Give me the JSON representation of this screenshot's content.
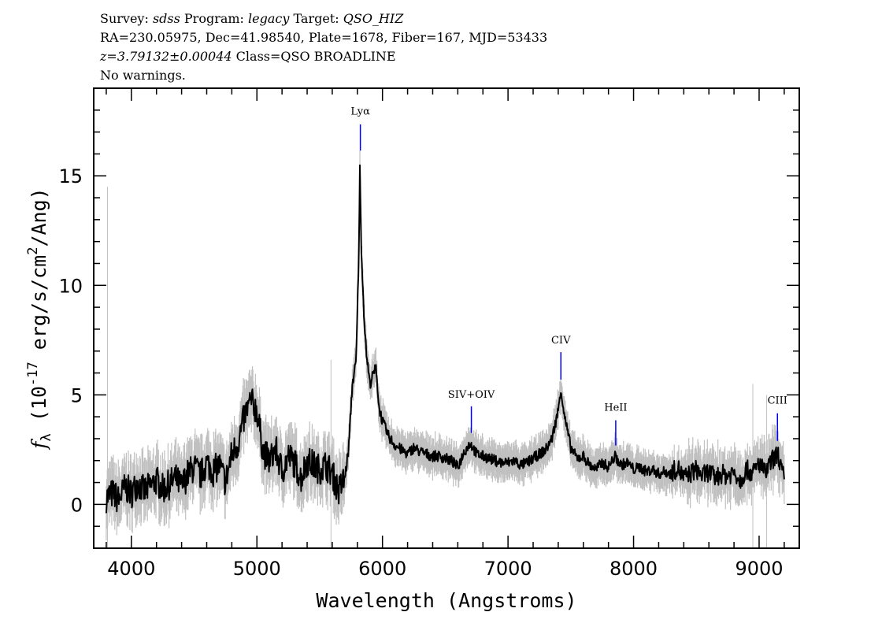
{
  "header": {
    "line1": {
      "survey_label": "Survey: ",
      "survey": "sdss",
      "program_label": " Program: ",
      "program": "legacy",
      "target_label": " Target: ",
      "target": "QSO_HIZ"
    },
    "line2": "RA=230.05975, Dec=41.98540, Plate=1678, Fiber=167, MJD=53433",
    "line3": {
      "redshift": "z=3.79132±0.00044",
      "class": " Class=QSO BROADLINE"
    },
    "line4": "No warnings."
  },
  "chart_data": {
    "type": "line",
    "xlabel": "Wavelength (Angstroms)",
    "ylabel": "f_λ (10^-17 erg/s/cm^2/Ang)",
    "xlim": [
      3700,
      9320
    ],
    "ylim": [
      -2,
      19
    ],
    "xticks": [
      4000,
      5000,
      6000,
      7000,
      8000,
      9000
    ],
    "yticks": [
      0,
      5,
      10,
      15
    ],
    "x_minor_step": 200,
    "y_minor_step": 1,
    "grid": false,
    "colors": {
      "flux": "#000000",
      "error_band": "#c0c0c0",
      "line_marker": "#0000ff"
    },
    "series": [
      {
        "x": [
          3800,
          3850,
          3900,
          3950,
          4000,
          4050,
          4100,
          4150,
          4200,
          4250,
          4300,
          4350,
          4400,
          4450,
          4500,
          4550,
          4600,
          4650,
          4700,
          4750,
          4800,
          4850,
          4900,
          4950,
          5000,
          5050,
          5100,
          5150,
          5200,
          5250,
          5300,
          5350,
          5400,
          5450,
          5500,
          5550,
          5600,
          5650,
          5700,
          5730,
          5760,
          5790,
          5810,
          5820,
          5830,
          5850,
          5870,
          5900,
          5950,
          5970,
          6000,
          6050,
          6100,
          6150,
          6200,
          6250,
          6300,
          6350,
          6400,
          6450,
          6500,
          6550,
          6600,
          6650,
          6700,
          6750,
          6800,
          6850,
          6900,
          6950,
          7000,
          7050,
          7100,
          7150,
          7200,
          7250,
          7300,
          7350,
          7400,
          7420,
          7450,
          7500,
          7550,
          7600,
          7650,
          7700,
          7750,
          7800,
          7850,
          7900,
          7950,
          8000,
          8050,
          8100,
          8150,
          8200,
          8250,
          8300,
          8350,
          8400,
          8450,
          8500,
          8550,
          8600,
          8650,
          8700,
          8750,
          8800,
          8850,
          8900,
          8950,
          9000,
          9050,
          9100,
          9150,
          9200
        ],
        "y": [
          0.3,
          0.5,
          0.2,
          0.8,
          0.5,
          1.0,
          0.6,
          0.8,
          1.1,
          0.7,
          0.9,
          1.2,
          0.8,
          1.4,
          1.7,
          1.3,
          1.9,
          1.5,
          1.8,
          1.0,
          2.3,
          2.8,
          4.0,
          4.7,
          4.3,
          2.4,
          2.0,
          2.5,
          1.5,
          2.2,
          1.9,
          1.2,
          2.0,
          1.8,
          1.6,
          1.8,
          1.4,
          0.6,
          1.2,
          2.5,
          5.5,
          6.5,
          11.0,
          15.3,
          12.0,
          9.0,
          7.0,
          5.5,
          6.3,
          4.5,
          3.8,
          3.1,
          2.7,
          2.5,
          2.3,
          2.6,
          2.4,
          2.3,
          2.2,
          2.2,
          2.1,
          2.0,
          1.7,
          2.4,
          2.8,
          2.3,
          2.2,
          2.1,
          2.0,
          1.9,
          1.9,
          2.0,
          1.8,
          1.9,
          2.1,
          2.3,
          2.5,
          3.0,
          4.3,
          5.3,
          4.0,
          2.6,
          2.1,
          2.2,
          1.8,
          1.6,
          1.9,
          1.7,
          2.2,
          1.8,
          1.9,
          1.6,
          1.7,
          1.5,
          1.6,
          1.4,
          1.5,
          1.4,
          1.7,
          1.2,
          1.4,
          1.6,
          1.3,
          1.5,
          1.2,
          1.4,
          1.3,
          1.5,
          1.1,
          1.6,
          1.4,
          1.9,
          1.4,
          2.0,
          2.3,
          1.1
        ]
      }
    ],
    "annotations": [
      {
        "label": "Lyα",
        "x": 5824,
        "label_y": 17.8,
        "marker_top": 17.35,
        "marker_bottom": 16.15
      },
      {
        "label": "SIV+OIV",
        "x": 6708,
        "label_y": 4.87,
        "marker_top": 4.48,
        "marker_bottom": 3.26
      },
      {
        "label": "CIV",
        "x": 7421,
        "label_y": 7.35,
        "marker_top": 6.95,
        "marker_bottom": 5.7
      },
      {
        "label": "HeII",
        "x": 7858,
        "label_y": 4.27,
        "marker_top": 3.84,
        "marker_bottom": 2.69
      },
      {
        "label": "CIII",
        "x": 9146,
        "label_y": 4.59,
        "marker_top": 4.16,
        "marker_bottom": 2.9
      }
    ]
  }
}
